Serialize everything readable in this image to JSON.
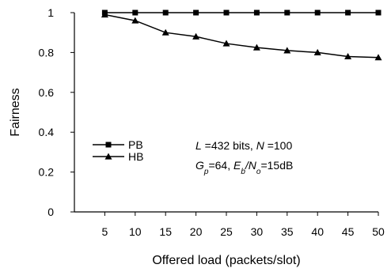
{
  "chart_data": {
    "type": "line",
    "title": "",
    "xlabel": "Offered load (packets/slot)",
    "ylabel": "Fairness",
    "x": [
      5,
      10,
      15,
      20,
      25,
      30,
      35,
      40,
      45,
      50
    ],
    "xlim": [
      0,
      50
    ],
    "ylim": [
      0,
      1
    ],
    "xticks": [
      5,
      10,
      15,
      20,
      25,
      30,
      35,
      40,
      45,
      50
    ],
    "yticks": [
      0,
      0.2,
      0.4,
      0.6,
      0.8,
      1
    ],
    "ytick_labels": [
      "0",
      "0.2",
      "0.4",
      "0.6",
      "0.8",
      "1"
    ],
    "grid": false,
    "legend_position": "left-middle",
    "series": [
      {
        "name": "PB",
        "marker": "square",
        "values": [
          1.0,
          1.0,
          1.0,
          1.0,
          1.0,
          1.0,
          1.0,
          1.0,
          1.0,
          1.0
        ]
      },
      {
        "name": "HB",
        "marker": "triangle",
        "values": [
          0.99,
          0.96,
          0.9,
          0.88,
          0.845,
          0.825,
          0.81,
          0.8,
          0.78,
          0.775
        ]
      }
    ],
    "annotations": [
      [
        {
          "t": "L",
          "i": true
        },
        {
          "t": " =432 bits, "
        },
        {
          "t": "N",
          "i": true
        },
        {
          "t": " =100"
        }
      ],
      [
        {
          "t": "G",
          "i": true
        },
        {
          "t": "p",
          "i": true,
          "sub": true
        },
        {
          "t": "=64, "
        },
        {
          "t": "E",
          "i": true
        },
        {
          "t": "b",
          "i": true,
          "sub": true
        },
        {
          "t": "/",
          "i": true
        },
        {
          "t": "N",
          "i": true
        },
        {
          "t": "o",
          "i": true,
          "sub": true
        },
        {
          "t": "=15dB"
        }
      ]
    ],
    "colors": {
      "line": "#000000",
      "axis": "#000000"
    }
  }
}
